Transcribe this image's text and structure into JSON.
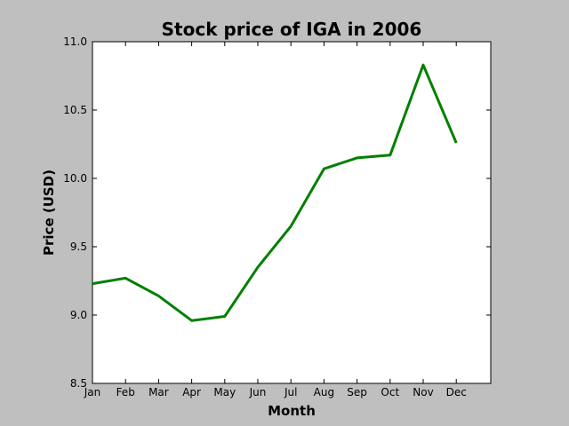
{
  "chart_data": {
    "type": "line",
    "title": "Stock price of IGA in 2006",
    "xlabel": "Month",
    "ylabel": "Price (USD)",
    "categories": [
      "Jan",
      "Feb",
      "Mar",
      "Apr",
      "May",
      "Jun",
      "Jul",
      "Aug",
      "Sep",
      "Oct",
      "Nov",
      "Dec"
    ],
    "series": [
      {
        "values": [
          9.23,
          9.27,
          9.14,
          8.96,
          8.99,
          9.35,
          9.65,
          10.07,
          10.15,
          10.17,
          10.83,
          10.26
        ]
      }
    ],
    "ylim": [
      8.5,
      11.0
    ],
    "yticks": [
      "8.5",
      "9.0",
      "9.5",
      "10.0",
      "10.5",
      "11.0"
    ],
    "grid": false,
    "colors": {
      "line": "#008000",
      "background": "#bfbfbf",
      "plot_area": "#ffffff"
    }
  }
}
